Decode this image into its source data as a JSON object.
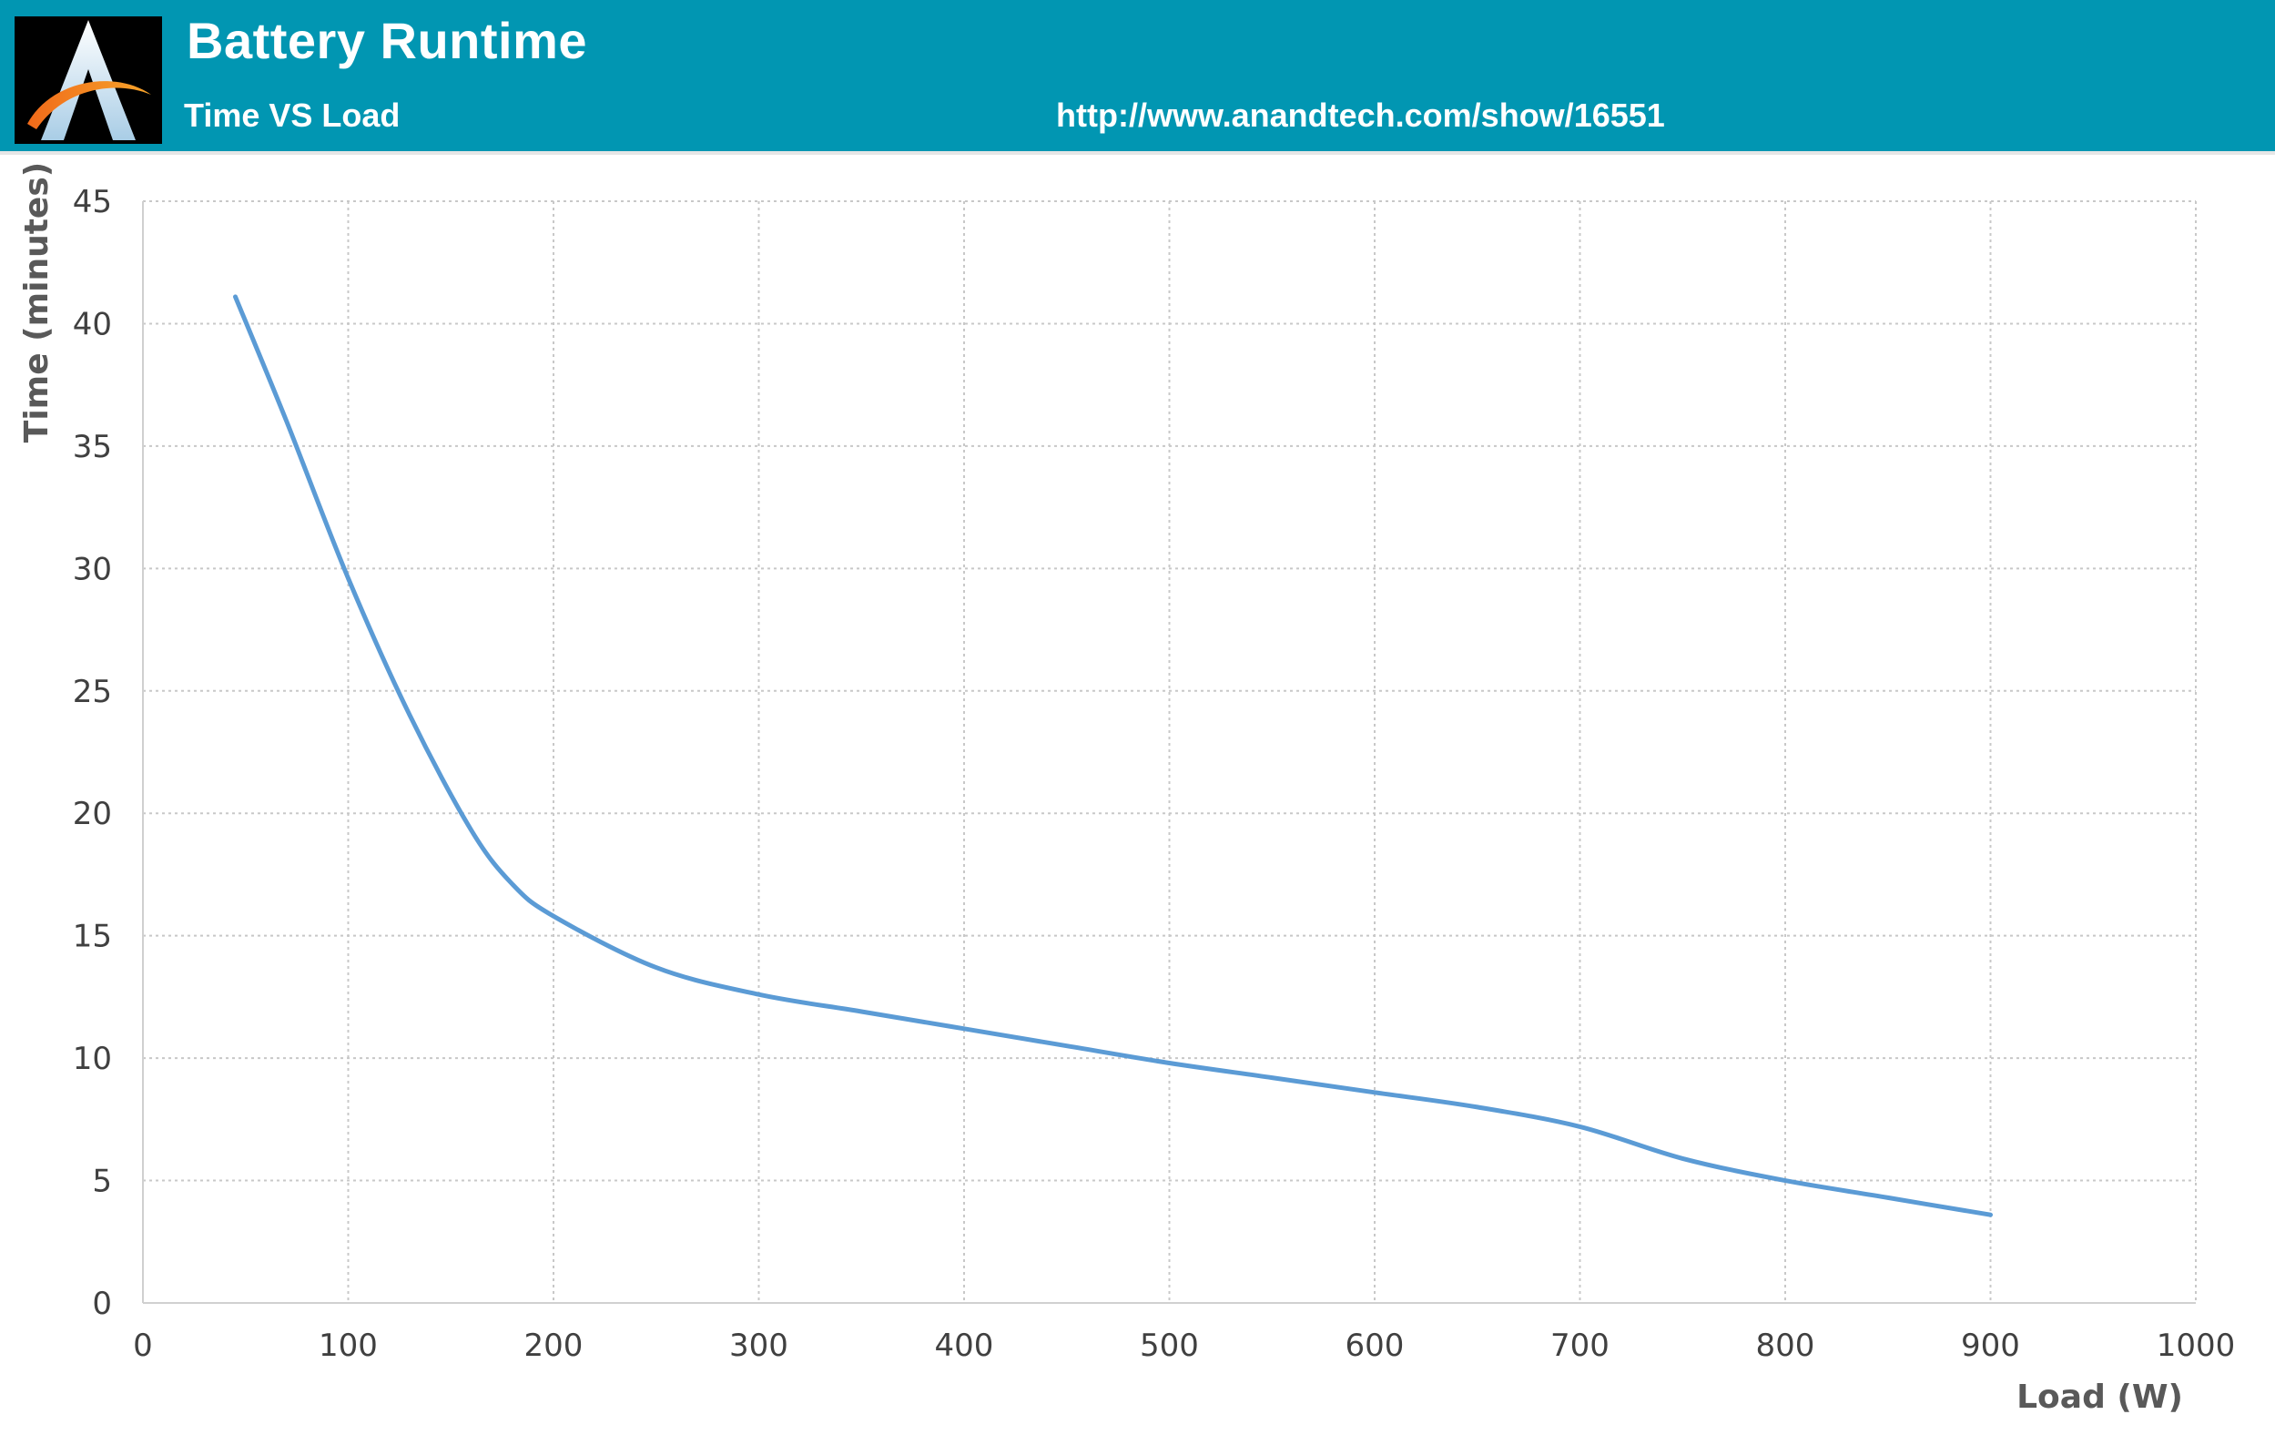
{
  "header": {
    "title": "Battery Runtime",
    "subtitle": "Time VS Load",
    "source_url": "http://www.anandtech.com/show/16551",
    "logo_icon": "anandtech-logo-icon",
    "background_color": "#0196b2"
  },
  "chart_data": {
    "type": "line",
    "title": "Battery Runtime",
    "subtitle": "Time VS Load",
    "xlabel": "Load (W)",
    "ylabel": "Time (minutes)",
    "xlim": [
      0,
      1000
    ],
    "ylim": [
      0,
      45
    ],
    "xticks": [
      0,
      100,
      200,
      300,
      400,
      500,
      600,
      700,
      800,
      900,
      1000
    ],
    "yticks": [
      0,
      5,
      10,
      15,
      20,
      25,
      30,
      35,
      40,
      45
    ],
    "grid": true,
    "legend": "none",
    "series": [
      {
        "color": "#5b9bd5",
        "x": [
          45,
          70,
          100,
          130,
          160,
          180,
          200,
          250,
          300,
          350,
          400,
          450,
          500,
          550,
          600,
          650,
          700,
          750,
          800,
          850,
          900
        ],
        "y": [
          41.1,
          36.0,
          29.6,
          24.0,
          19.3,
          17.1,
          15.8,
          13.7,
          12.6,
          11.9,
          11.2,
          10.5,
          9.8,
          9.2,
          8.6,
          8.0,
          7.2,
          5.9,
          5.0,
          4.3,
          3.6
        ]
      }
    ]
  }
}
